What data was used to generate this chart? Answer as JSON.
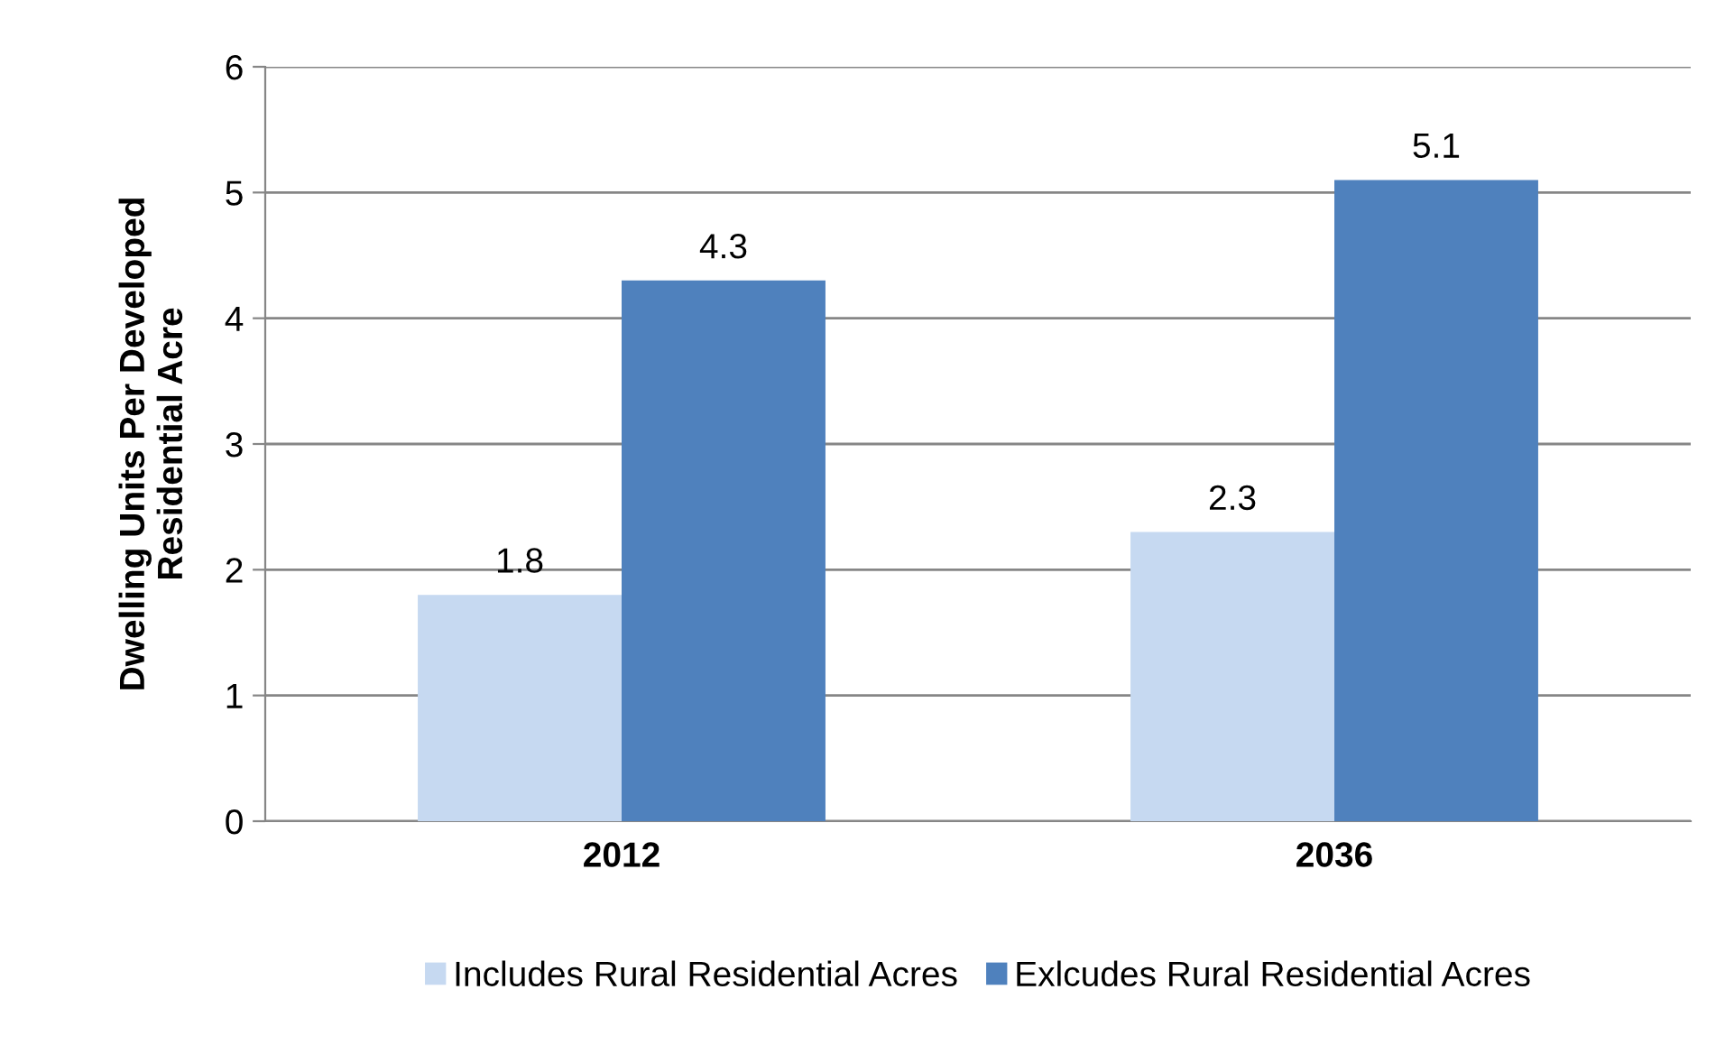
{
  "chart_data": {
    "type": "bar",
    "ylabel": "Dwelling Units Per Developed\nResidential Acre",
    "categories": [
      "2012",
      "2036"
    ],
    "series": [
      {
        "name": "Includes Rural Residential Acres",
        "color": "#c6d9f1",
        "values": [
          1.8,
          2.3
        ]
      },
      {
        "name": "Exlcudes Rural Residential Acres",
        "color": "#4f81bd",
        "values": [
          4.3,
          5.1
        ]
      }
    ],
    "ylim": [
      0,
      6
    ],
    "yticks": [
      0,
      1,
      2,
      3,
      4,
      5,
      6
    ],
    "grid": "y",
    "legend": "bottom",
    "data_labels": true
  }
}
